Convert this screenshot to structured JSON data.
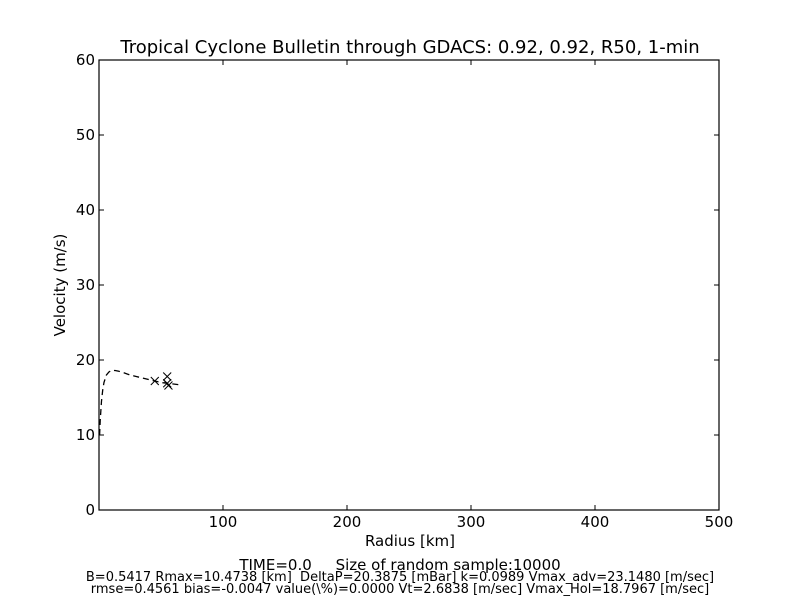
{
  "chart_data": {
    "type": "line",
    "title": "Tropical Cyclone Bulletin through GDACS: 0.92, 0.92, R50, 1-min",
    "xlabel": "Radius [km]",
    "ylabel": "Velocity (m/s)",
    "xlim": [
      0,
      500
    ],
    "ylim": [
      0,
      60
    ],
    "xticks": [
      100,
      200,
      300,
      400,
      500
    ],
    "yticks": [
      0,
      10,
      20,
      30,
      40,
      50,
      60
    ],
    "grid": false,
    "series": [
      {
        "style": "dashed",
        "color": "#000000",
        "x": [
          0.5,
          1,
          2,
          3,
          4,
          6,
          8,
          10,
          13,
          16,
          20,
          25,
          30,
          35,
          40,
          45,
          50,
          55,
          60,
          65
        ],
        "y": [
          10.0,
          12.0,
          14.5,
          16.0,
          17.0,
          18.0,
          18.4,
          18.6,
          18.6,
          18.5,
          18.3,
          18.0,
          17.8,
          17.6,
          17.4,
          17.2,
          17.0,
          16.9,
          16.8,
          16.7
        ]
      },
      {
        "style": "markers",
        "marker": "x",
        "color": "#000000",
        "x": [
          45,
          55,
          56,
          55
        ],
        "y": [
          17.2,
          17.8,
          16.6,
          16.9
        ]
      }
    ]
  },
  "footer": {
    "line1": "TIME=0.0     Size of random sample:10000",
    "line2": "B=0.5417 Rmax=10.4738 [km]  DeltaP=20.3875 [mBar] k=0.0989 Vmax_adv=23.1480 [m/sec]",
    "line3": "rmse=0.4561 bias=-0.0047 value(\\%)=0.0000 Vt=2.6838 [m/sec] Vmax_Hol=18.7967 [m/sec]"
  }
}
